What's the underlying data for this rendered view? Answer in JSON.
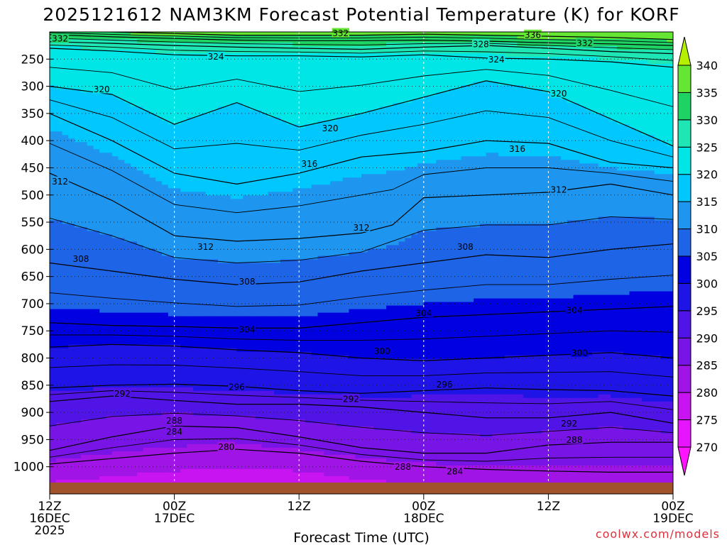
{
  "chart_data": {
    "type": "heatmap",
    "title": "2025121612 NAM3KM Forecast Potential Temperature (K) for KORF",
    "xlabel": "Forecast Time (UTC)",
    "ylabel": "",
    "credit": "coolwx.com/models",
    "y_axis": {
      "unit": "hPa",
      "range": [
        200,
        1050
      ],
      "ticks": [
        250,
        300,
        350,
        400,
        450,
        500,
        550,
        600,
        650,
        700,
        750,
        800,
        850,
        900,
        950,
        1000
      ]
    },
    "x_axis": {
      "unit": "forecast hour",
      "range": [
        0,
        60
      ],
      "ticks": [
        {
          "hour": 0,
          "line1": "12Z",
          "line2": "16DEC",
          "line3": "2025"
        },
        {
          "hour": 12,
          "line1": "00Z",
          "line2": "17DEC",
          "line3": ""
        },
        {
          "hour": 24,
          "line1": "12Z",
          "line2": "",
          "line3": ""
        },
        {
          "hour": 36,
          "line1": "00Z",
          "line2": "18DEC",
          "line3": ""
        },
        {
          "hour": 48,
          "line1": "12Z",
          "line2": "",
          "line3": ""
        },
        {
          "hour": 60,
          "line1": "00Z",
          "line2": "19DEC",
          "line3": ""
        }
      ]
    },
    "colorbar": {
      "levels": [
        270,
        275,
        280,
        285,
        290,
        295,
        300,
        305,
        310,
        315,
        320,
        325,
        330,
        335,
        340
      ],
      "colors": [
        "#ff14ff",
        "#e614ff",
        "#c814f0",
        "#a014e6",
        "#7814e6",
        "#5014e6",
        "#1e14e6",
        "#0000e0",
        "#1e64e6",
        "#1e96f0",
        "#00c8ff",
        "#00e6e6",
        "#1ee6b4",
        "#1ed264",
        "#64e632",
        "#b4f000"
      ]
    },
    "ground_color": "#a0522d",
    "isentropes": [
      {
        "theta": 284,
        "labeled": true,
        "points": [
          [
            0,
            995
          ],
          [
            6,
            985
          ],
          [
            12,
            975
          ],
          [
            18,
            968
          ],
          [
            24,
            975
          ],
          [
            30,
            990
          ],
          [
            36,
            1000
          ],
          [
            42,
            1005
          ],
          [
            48,
            1008
          ],
          [
            54,
            1010
          ],
          [
            60,
            1010
          ]
        ]
      },
      {
        "theta": 288,
        "labeled": true,
        "points": [
          [
            0,
            970
          ],
          [
            6,
            945
          ],
          [
            12,
            925
          ],
          [
            18,
            928
          ],
          [
            24,
            945
          ],
          [
            30,
            965
          ],
          [
            36,
            975
          ],
          [
            42,
            975
          ],
          [
            48,
            960
          ],
          [
            54,
            955
          ],
          [
            60,
            955
          ]
        ]
      },
      {
        "theta": 292,
        "labeled": true,
        "points": [
          [
            0,
            880
          ],
          [
            6,
            870
          ],
          [
            12,
            878
          ],
          [
            18,
            885
          ],
          [
            24,
            885
          ],
          [
            30,
            890
          ],
          [
            36,
            900
          ],
          [
            42,
            910
          ],
          [
            48,
            910
          ],
          [
            54,
            900
          ],
          [
            60,
            920
          ]
        ]
      },
      {
        "theta": 296,
        "labeled": true,
        "points": [
          [
            0,
            855
          ],
          [
            6,
            850
          ],
          [
            12,
            848
          ],
          [
            18,
            852
          ],
          [
            24,
            860
          ],
          [
            30,
            865
          ],
          [
            36,
            860
          ],
          [
            42,
            855
          ],
          [
            48,
            858
          ],
          [
            54,
            860
          ],
          [
            60,
            870
          ]
        ]
      },
      {
        "theta": 300,
        "labeled": true,
        "points": [
          [
            0,
            780
          ],
          [
            6,
            775
          ],
          [
            12,
            778
          ],
          [
            18,
            785
          ],
          [
            24,
            790
          ],
          [
            30,
            800
          ],
          [
            36,
            805
          ],
          [
            42,
            800
          ],
          [
            48,
            795
          ],
          [
            54,
            790
          ],
          [
            60,
            800
          ]
        ]
      },
      {
        "theta": 304,
        "labeled": true,
        "points": [
          [
            0,
            735
          ],
          [
            6,
            740
          ],
          [
            12,
            742
          ],
          [
            18,
            745
          ],
          [
            24,
            745
          ],
          [
            30,
            735
          ],
          [
            36,
            725
          ],
          [
            42,
            720
          ],
          [
            48,
            715
          ],
          [
            54,
            710
          ],
          [
            60,
            705
          ]
        ]
      },
      {
        "theta": 308,
        "labeled": true,
        "points": [
          [
            0,
            625
          ],
          [
            6,
            640
          ],
          [
            12,
            655
          ],
          [
            18,
            665
          ],
          [
            24,
            660
          ],
          [
            30,
            640
          ],
          [
            36,
            625
          ],
          [
            42,
            610
          ],
          [
            48,
            615
          ],
          [
            54,
            600
          ],
          [
            60,
            590
          ]
        ]
      },
      {
        "theta": 312,
        "labeled": true,
        "points": [
          [
            0,
            460
          ],
          [
            6,
            510
          ],
          [
            12,
            575
          ],
          [
            18,
            585
          ],
          [
            24,
            580
          ],
          [
            30,
            570
          ],
          [
            33,
            555
          ],
          [
            36,
            505
          ],
          [
            42,
            500
          ],
          [
            48,
            495
          ],
          [
            54,
            480
          ],
          [
            60,
            500
          ]
        ]
      },
      {
        "theta": 316,
        "labeled": true,
        "points": [
          [
            0,
            350
          ],
          [
            6,
            400
          ],
          [
            12,
            460
          ],
          [
            18,
            480
          ],
          [
            24,
            460
          ],
          [
            30,
            430
          ],
          [
            36,
            420
          ],
          [
            42,
            400
          ],
          [
            48,
            405
          ],
          [
            54,
            440
          ],
          [
            60,
            450
          ]
        ]
      },
      {
        "theta": 320,
        "labeled": true,
        "points": [
          [
            0,
            300
          ],
          [
            6,
            315
          ],
          [
            12,
            370
          ],
          [
            18,
            330
          ],
          [
            24,
            375
          ],
          [
            30,
            350
          ],
          [
            36,
            320
          ],
          [
            42,
            290
          ],
          [
            48,
            310
          ],
          [
            54,
            360
          ],
          [
            60,
            410
          ]
        ]
      },
      {
        "theta": 324,
        "labeled": true,
        "points": [
          [
            0,
            230
          ],
          [
            6,
            235
          ],
          [
            12,
            242
          ],
          [
            18,
            244
          ],
          [
            24,
            244
          ],
          [
            30,
            246
          ],
          [
            36,
            242
          ],
          [
            42,
            248
          ],
          [
            48,
            250
          ],
          [
            54,
            255
          ],
          [
            60,
            265
          ]
        ]
      },
      {
        "theta": 328,
        "labeled": true,
        "points": [
          [
            0,
            218
          ],
          [
            6,
            221
          ],
          [
            12,
            225
          ],
          [
            18,
            228
          ],
          [
            24,
            230
          ],
          [
            30,
            232
          ],
          [
            36,
            228
          ],
          [
            42,
            225
          ],
          [
            48,
            230
          ],
          [
            54,
            236
          ],
          [
            60,
            240
          ]
        ]
      },
      {
        "theta": 332,
        "labeled": true,
        "points": [
          [
            0,
            205
          ],
          [
            6,
            209
          ],
          [
            12,
            212
          ],
          [
            18,
            215
          ],
          [
            24,
            216
          ],
          [
            30,
            216
          ],
          [
            36,
            215
          ],
          [
            42,
            217
          ],
          [
            48,
            220
          ],
          [
            54,
            222
          ],
          [
            60,
            225
          ]
        ]
      },
      {
        "theta": 336,
        "labeled": true,
        "points": [
          [
            0,
            198
          ],
          [
            6,
            200
          ],
          [
            12,
            203
          ],
          [
            18,
            206
          ],
          [
            24,
            206
          ],
          [
            30,
            206
          ],
          [
            36,
            204
          ],
          [
            42,
            206
          ],
          [
            48,
            208
          ],
          [
            54,
            210
          ],
          [
            60,
            214
          ]
        ]
      }
    ],
    "contour_labels": [
      {
        "text": "332",
        "hour": 1.0,
        "pressure": 212
      },
      {
        "text": "332",
        "hour": 28,
        "pressure": 202
      },
      {
        "text": "336",
        "hour": 46.5,
        "pressure": 205
      },
      {
        "text": "328",
        "hour": 41.5,
        "pressure": 222
      },
      {
        "text": "332",
        "hour": 51.5,
        "pressure": 220
      },
      {
        "text": "324",
        "hour": 16,
        "pressure": 245
      },
      {
        "text": "324",
        "hour": 43,
        "pressure": 250
      },
      {
        "text": "320",
        "hour": 5,
        "pressure": 305
      },
      {
        "text": "320",
        "hour": 27,
        "pressure": 377
      },
      {
        "text": "320",
        "hour": 49,
        "pressure": 313
      },
      {
        "text": "316",
        "hour": 25,
        "pressure": 442
      },
      {
        "text": "316",
        "hour": 45,
        "pressure": 415
      },
      {
        "text": "312",
        "hour": 1.0,
        "pressure": 475
      },
      {
        "text": "312",
        "hour": 15,
        "pressure": 595
      },
      {
        "text": "312",
        "hour": 30,
        "pressure": 560
      },
      {
        "text": "312",
        "hour": 49,
        "pressure": 490
      },
      {
        "text": "308",
        "hour": 3,
        "pressure": 617
      },
      {
        "text": "308",
        "hour": 19,
        "pressure": 659
      },
      {
        "text": "308",
        "hour": 40,
        "pressure": 595
      },
      {
        "text": "304",
        "hour": 19,
        "pressure": 747
      },
      {
        "text": "304",
        "hour": 36,
        "pressure": 717
      },
      {
        "text": "304",
        "hour": 50.5,
        "pressure": 712
      },
      {
        "text": "300",
        "hour": 32,
        "pressure": 787
      },
      {
        "text": "300",
        "hour": 51,
        "pressure": 790
      },
      {
        "text": "296",
        "hour": 18,
        "pressure": 853
      },
      {
        "text": "296",
        "hour": 38,
        "pressure": 848
      },
      {
        "text": "292",
        "hour": 7,
        "pressure": 865
      },
      {
        "text": "292",
        "hour": 29,
        "pressure": 875
      },
      {
        "text": "292",
        "hour": 50,
        "pressure": 920
      },
      {
        "text": "288",
        "hour": 12,
        "pressure": 915
      },
      {
        "text": "288",
        "hour": 34,
        "pressure": 1000
      },
      {
        "text": "288",
        "hour": 50.5,
        "pressure": 950
      },
      {
        "text": "284",
        "hour": 12,
        "pressure": 935
      },
      {
        "text": "284",
        "hour": 39,
        "pressure": 1008
      },
      {
        "text": "280",
        "hour": 17,
        "pressure": 963
      }
    ]
  }
}
